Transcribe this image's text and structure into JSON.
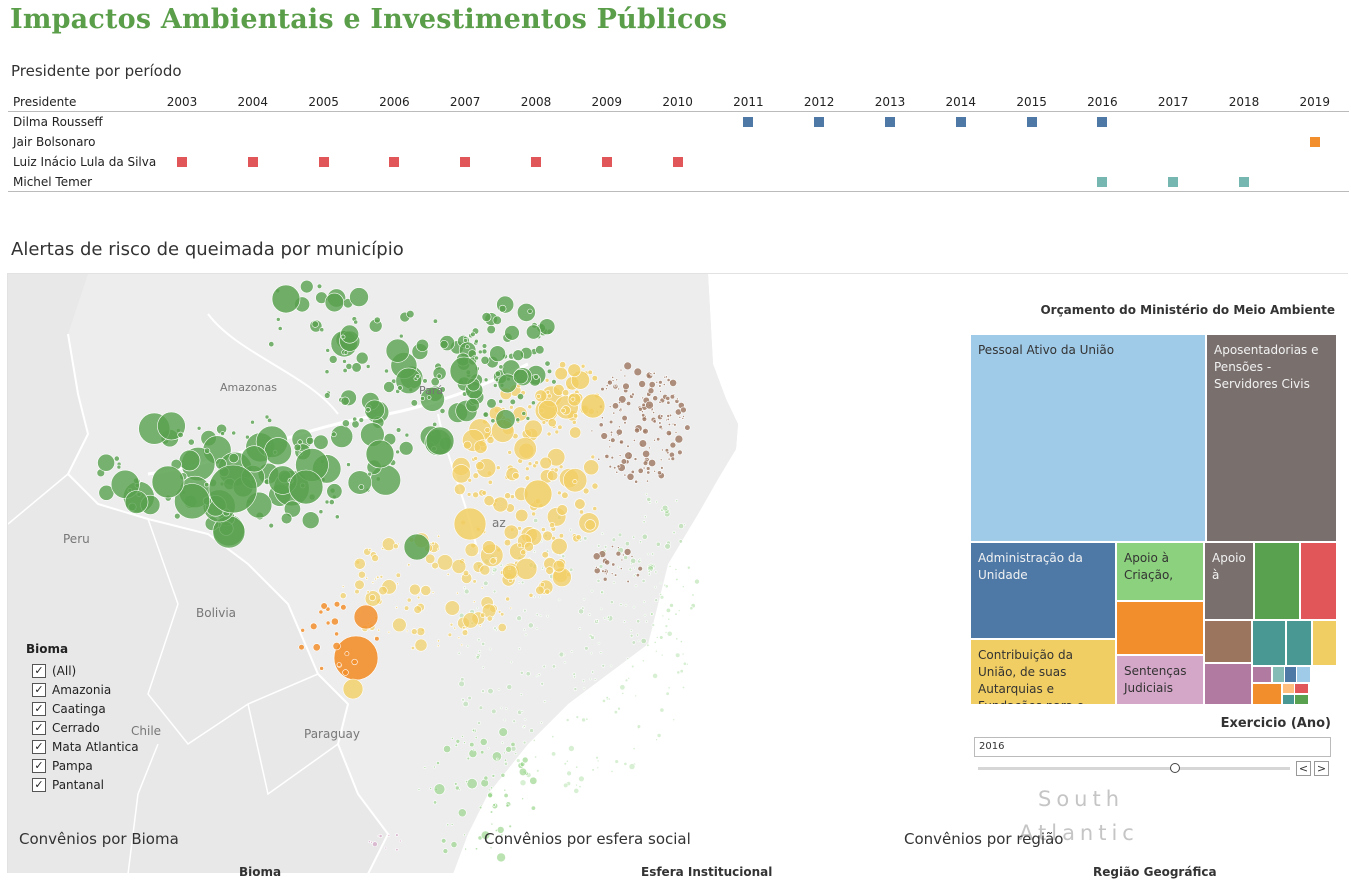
{
  "dashboard_title": "Impactos Ambientais e Investimentos Públicos",
  "timeline": {
    "section_title": "Presidente por período",
    "header_label": "Presidente",
    "years": [
      "2003",
      "2004",
      "2005",
      "2006",
      "2007",
      "2008",
      "2009",
      "2010",
      "2011",
      "2012",
      "2013",
      "2014",
      "2015",
      "2016",
      "2017",
      "2018",
      "2019"
    ],
    "presidents": [
      {
        "name": "Dilma Rousseff",
        "color": "#4e79a7",
        "years": [
          "2011",
          "2012",
          "2013",
          "2014",
          "2015",
          "2016"
        ]
      },
      {
        "name": "Jair Bolsonaro",
        "color": "#f28e2b",
        "years": [
          "2019"
        ]
      },
      {
        "name": "Luiz Inácio Lula da Silva",
        "color": "#e15759",
        "years": [
          "2003",
          "2004",
          "2005",
          "2006",
          "2007",
          "2008",
          "2009",
          "2010"
        ]
      },
      {
        "name": "Michel Temer",
        "color": "#76b7b2",
        "years": [
          "2016",
          "2017",
          "2018"
        ]
      }
    ]
  },
  "map": {
    "section_title": "Alertas de risco de queimada por município",
    "places": {
      "peru": "Peru",
      "bolivia": "Bolivia",
      "paraguay": "Paraguay",
      "chile": "Chile",
      "amazonas": "Amazonas",
      "para": "Pará",
      "brazil_fragment": "az",
      "ocean_line1": "South",
      "ocean_line2": "Atlantic"
    },
    "biome_colors": {
      "Amazonia": "#59a14f",
      "Caatinga": "#9c755f",
      "Cerrado": "#f1ce63",
      "Mata Atlantica": "#8cd17d",
      "Pampa": "#d4a6c8",
      "Pantanal": "#f28e2b"
    }
  },
  "legend": {
    "title": "Bioma",
    "items": [
      "(All)",
      "Amazonia",
      "Caatinga",
      "Cerrado",
      "Mata Atlantica",
      "Pampa",
      "Pantanal"
    ],
    "check_glyph": "✓"
  },
  "treemap": {
    "title": "Orçamento do Ministério do Meio Ambiente",
    "tiles": [
      {
        "label": "Pessoal Ativo da União",
        "color": "#a0cbe8",
        "text_color": "#333333"
      },
      {
        "label": "Aposentadorias e Pensões - Servidores Civis",
        "color": "#79706e",
        "text_color": "#f2f2f2"
      },
      {
        "label": "Administração da Unidade",
        "color": "#4e79a7",
        "text_color": "#f2f2f2"
      },
      {
        "label": "Apoio à Criação,",
        "color": "#8cd17d",
        "text_color": "#333333"
      },
      {
        "label": "Apoio à",
        "color": "#79706e",
        "text_color": "#f2f2f2"
      },
      {
        "label": "Contribuição da União, de suas Autarquias e Fundações para o",
        "color": "#f1ce63",
        "text_color": "#333333"
      },
      {
        "label": "Sentenças Judiciais",
        "color": "#d4a6c8",
        "text_color": "#333333"
      }
    ]
  },
  "year_filter": {
    "title": "Exercicio (Ano)",
    "value": "2016",
    "prev": "<",
    "next": ">"
  },
  "bottom": {
    "bioma_title": "Convênios por Bioma",
    "bioma_axis": "Bioma",
    "esfera_title": "Convênios por esfera social",
    "esfera_axis": "Esfera Institucional",
    "regiao_title": "Convênios por região",
    "regiao_axis": "Região Geográfica"
  }
}
